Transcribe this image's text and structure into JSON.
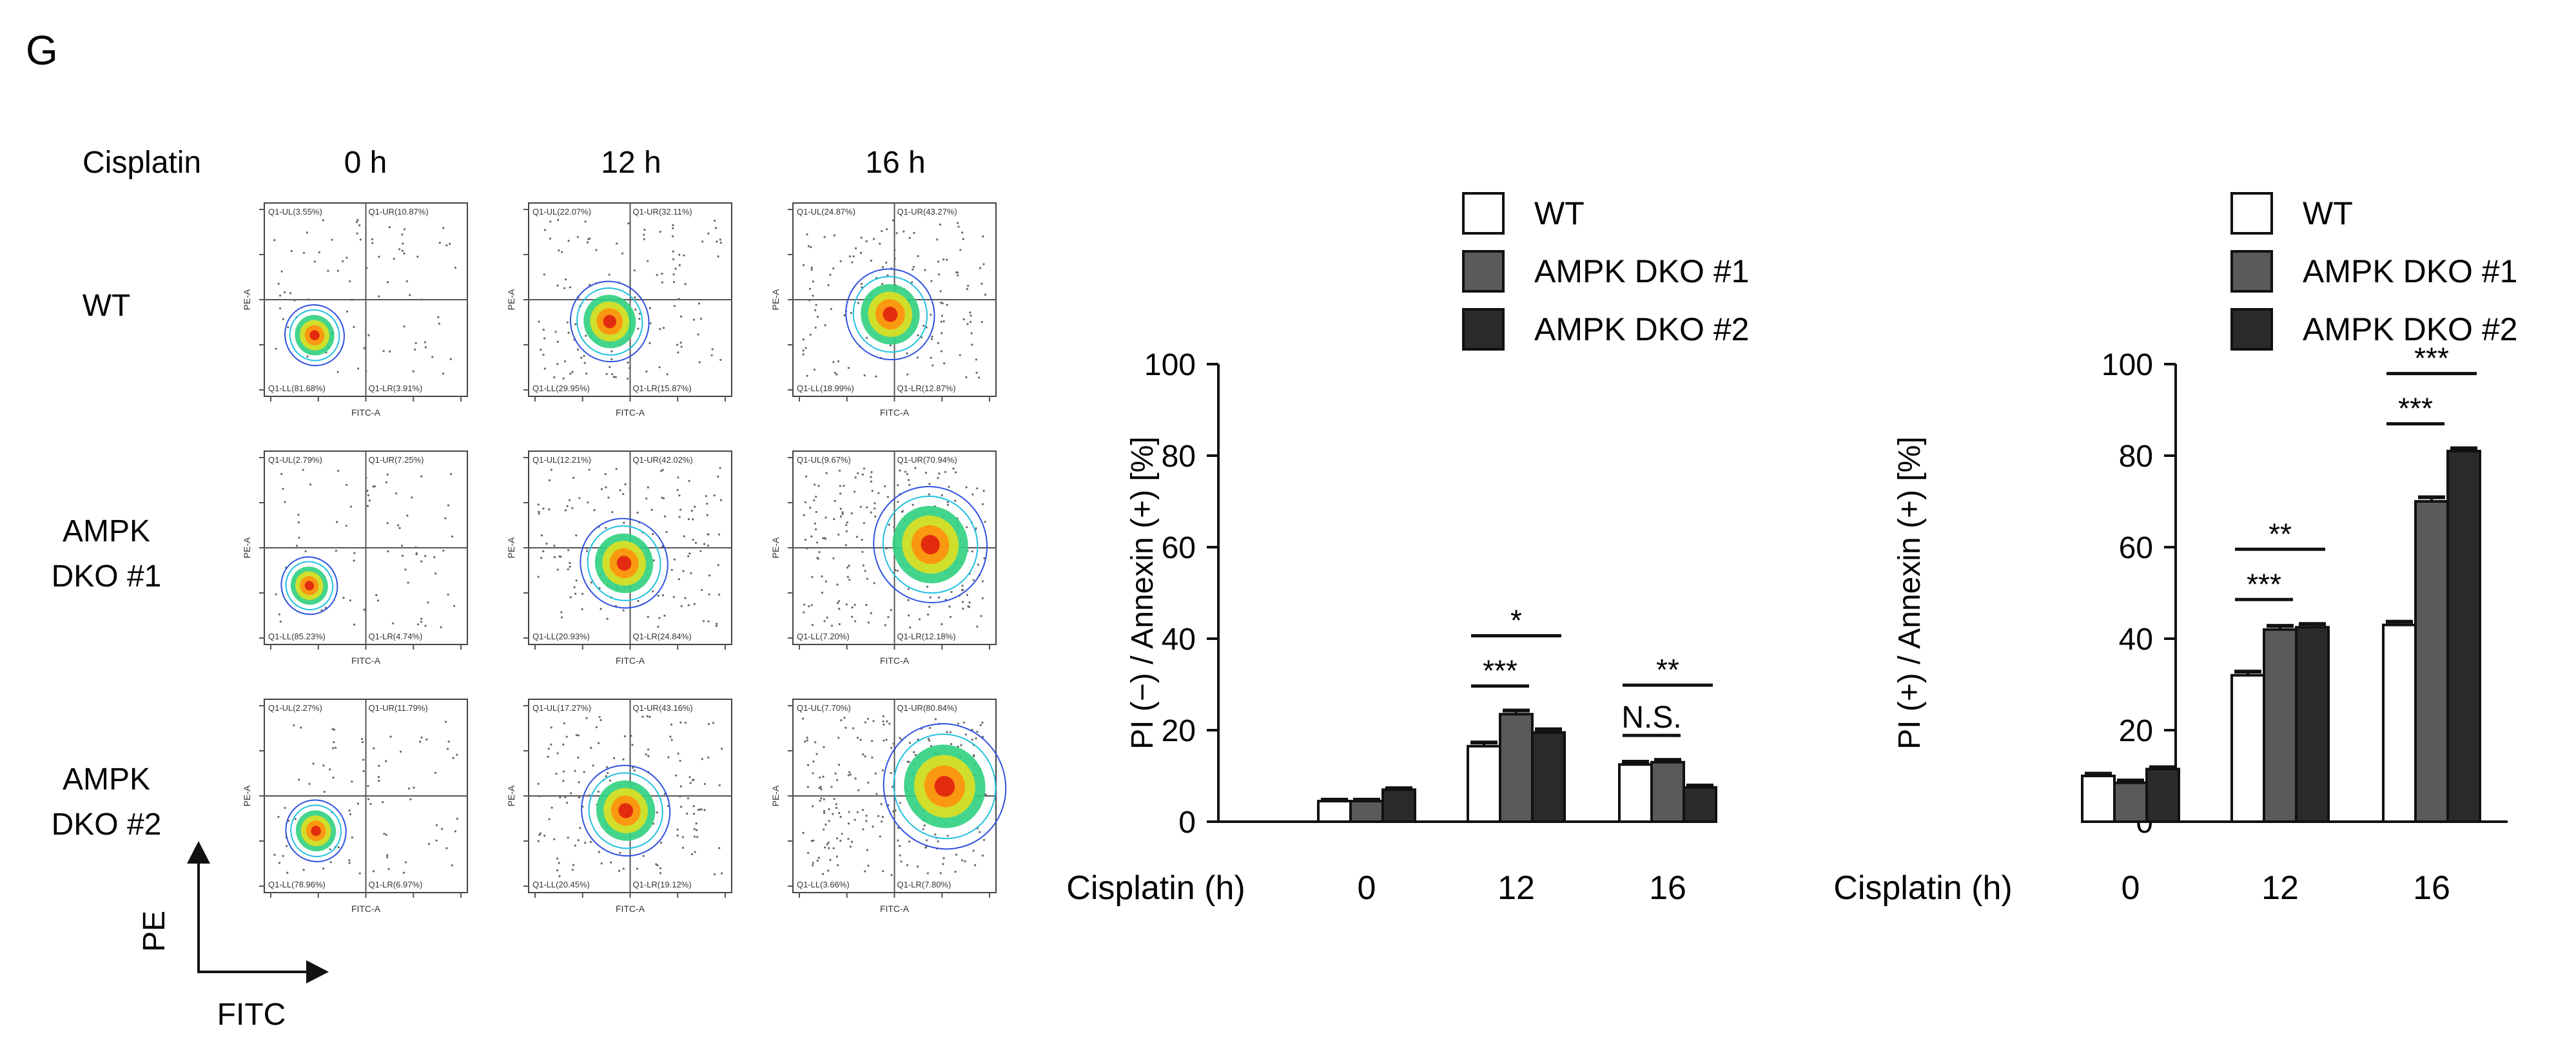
{
  "panel_label": "G",
  "flow": {
    "drug_label": "Cisplatin",
    "timepoints": [
      "0 h",
      "12 h",
      "16 h"
    ],
    "rows": [
      {
        "label": "WT",
        "plots": [
          {
            "UL": "Q1-UL(3.55%)",
            "UR": "Q1-UR(10.87%)",
            "LL": "Q1-LL(81.68%)",
            "LR": "Q1-LR(3.91%)"
          },
          {
            "UL": "Q1-UL(22.07%)",
            "UR": "Q1-UR(32.11%)",
            "LL": "Q1-LL(29.95%)",
            "LR": "Q1-LR(15.87%)"
          },
          {
            "UL": "Q1-UL(24.87%)",
            "UR": "Q1-UR(43.27%)",
            "LL": "Q1-LL(18.99%)",
            "LR": "Q1-LR(12.87%)"
          }
        ]
      },
      {
        "label": "AMPK\nDKO #1",
        "plots": [
          {
            "UL": "Q1-UL(2.79%)",
            "UR": "Q1-UR(7.25%)",
            "LL": "Q1-LL(85.23%)",
            "LR": "Q1-LR(4.74%)"
          },
          {
            "UL": "Q1-UL(12.21%)",
            "UR": "Q1-UR(42.02%)",
            "LL": "Q1-LL(20.93%)",
            "LR": "Q1-LR(24.84%)"
          },
          {
            "UL": "Q1-UL(9.67%)",
            "UR": "Q1-UR(70.94%)",
            "LL": "Q1-LL(7.20%)",
            "LR": "Q1-LR(12.18%)"
          }
        ]
      },
      {
        "label": "AMPK\nDKO #2",
        "plots": [
          {
            "UL": "Q1-UL(2.27%)",
            "UR": "Q1-UR(11.79%)",
            "LL": "Q1-LL(78.96%)",
            "LR": "Q1-LR(6.97%)"
          },
          {
            "UL": "Q1-UL(17.27%)",
            "UR": "Q1-UR(43.16%)",
            "LL": "Q1-LL(20.45%)",
            "LR": "Q1-LR(19.12%)"
          },
          {
            "UL": "Q1-UL(7.70%)",
            "UR": "Q1-UR(80.84%)",
            "LL": "Q1-LL(3.66%)",
            "LR": "Q1-LR(7.80%)"
          }
        ]
      }
    ],
    "x_axis_label": "FITC-A",
    "y_axis_label": "PE-A",
    "axis_arrow_x": "FITC",
    "axis_arrow_y": "PE",
    "contour_colors": [
      "#3050e0",
      "#20c0e0",
      "#30d080",
      "#e0e020",
      "#ff9010",
      "#e02010"
    ]
  },
  "chart_data": [
    {
      "type": "bar",
      "xlabel": "Cisplatin (h)",
      "ylabel": "PI (−) / Annexin (+) [%]",
      "categories": [
        "0",
        "12",
        "16"
      ],
      "ylim": [
        0,
        100
      ],
      "yticks": [
        "0",
        "20",
        "40",
        "60",
        "80",
        "100"
      ],
      "series": [
        {
          "name": "WT",
          "color": "#ffffff",
          "values": [
            4.5,
            16.5,
            12.5
          ],
          "errors": [
            0.3,
            0.8,
            0.6
          ]
        },
        {
          "name": "AMPK DKO #1",
          "color": "#5a5a5a",
          "values": [
            4.5,
            23.5,
            13.0
          ],
          "errors": [
            0.3,
            0.8,
            0.5
          ]
        },
        {
          "name": "AMPK DKO #2",
          "color": "#2a2a2a",
          "values": [
            7.0,
            19.5,
            7.5
          ],
          "errors": [
            0.3,
            0.7,
            0.4
          ]
        }
      ],
      "annotations": [
        {
          "text": "***",
          "category": 1,
          "from": 0,
          "to": 1
        },
        {
          "text": "*",
          "category": 1,
          "from": 0,
          "to": 2
        },
        {
          "text": "N.S.",
          "category": 2,
          "from": 0,
          "to": 1
        },
        {
          "text": "**",
          "category": 2,
          "from": 0,
          "to": 2
        }
      ]
    },
    {
      "type": "bar",
      "xlabel": "Cisplatin (h)",
      "ylabel": "PI (+) / Annexin (+) [%]",
      "categories": [
        "0",
        "12",
        "16"
      ],
      "ylim": [
        0,
        100
      ],
      "yticks": [
        "0",
        "20",
        "40",
        "60",
        "80",
        "100"
      ],
      "series": [
        {
          "name": "WT",
          "color": "#ffffff",
          "values": [
            10.0,
            32.0,
            43.0
          ],
          "errors": [
            0.5,
            0.8,
            0.7
          ]
        },
        {
          "name": "AMPK DKO #1",
          "color": "#5a5a5a",
          "values": [
            8.5,
            42.0,
            70.0
          ],
          "errors": [
            0.5,
            0.8,
            0.9
          ]
        },
        {
          "name": "AMPK DKO #2",
          "color": "#2a2a2a",
          "values": [
            11.5,
            42.5,
            81.0
          ],
          "errors": [
            0.4,
            0.7,
            0.6
          ]
        }
      ],
      "annotations": [
        {
          "text": "***",
          "category": 1,
          "from": 0,
          "to": 1
        },
        {
          "text": "**",
          "category": 1,
          "from": 0,
          "to": 2
        },
        {
          "text": "***",
          "category": 2,
          "from": 0,
          "to": 1
        },
        {
          "text": "***",
          "category": 2,
          "from": 0,
          "to": 2
        }
      ]
    }
  ]
}
